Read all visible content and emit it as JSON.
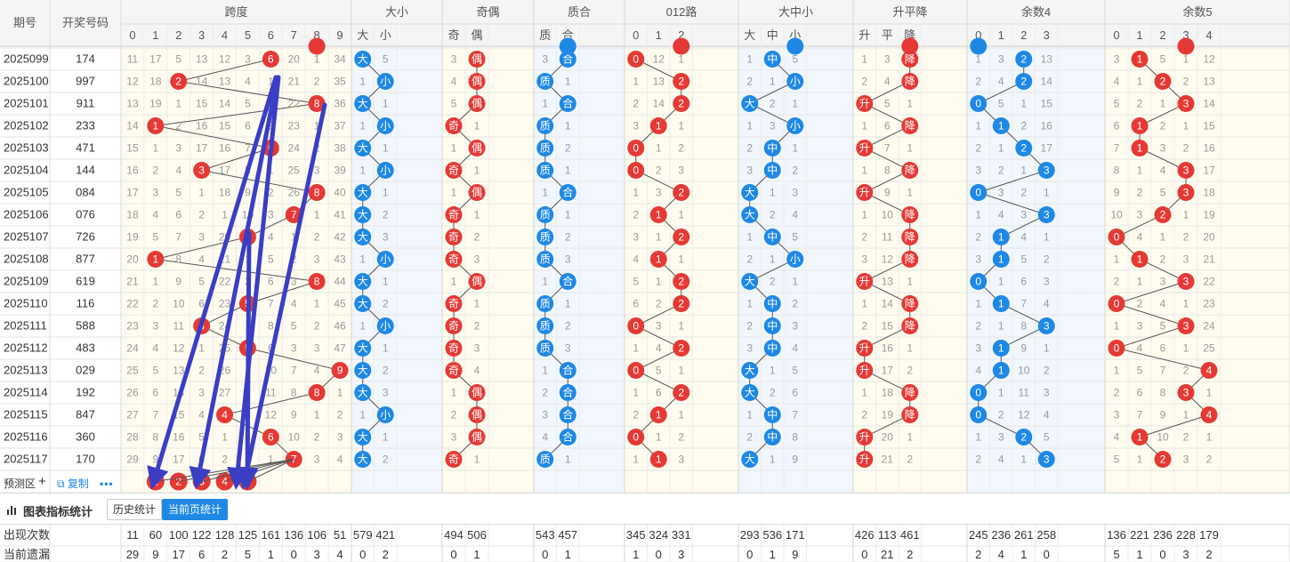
{
  "colors": {
    "red": "#e53935",
    "blue": "#1e88e5",
    "arrow": "#3a3ec4",
    "headerBg": "#f5f5f5",
    "zoneYellow": "#fffcef",
    "zoneBlue": "#f1f7fd"
  },
  "headers": {
    "qihao": "期号",
    "kaijiang": "开奖号码",
    "groups": [
      {
        "name": "跨度",
        "sub": [
          "0",
          "1",
          "2",
          "3",
          "4",
          "5",
          "6",
          "7",
          "8",
          "9"
        ]
      },
      {
        "name": "大小",
        "sub": [
          "大",
          "小"
        ]
      },
      {
        "name": "奇偶",
        "sub": [
          "奇",
          "偶"
        ]
      },
      {
        "name": "质合",
        "sub": [
          "质",
          "合"
        ]
      },
      {
        "name": "012路",
        "sub": [
          "0",
          "1",
          "2"
        ]
      },
      {
        "name": "大中小",
        "sub": [
          "大",
          "中",
          "小"
        ]
      },
      {
        "name": "升平降",
        "sub": [
          "升",
          "平",
          "降"
        ]
      },
      {
        "name": "余数4",
        "sub": [
          "0",
          "1",
          "2",
          "3"
        ]
      },
      {
        "name": "余数5",
        "sub": [
          "0",
          "1",
          "2",
          "3",
          "4"
        ]
      }
    ]
  },
  "rows": [
    {
      "period": "2025099",
      "number": "174",
      "groups": [
        [
          11,
          17,
          5,
          13,
          12,
          3,
          "●",
          20,
          1,
          34
        ],
        [
          "●",
          5
        ],
        [
          3,
          "●"
        ],
        [
          3,
          "●"
        ],
        [
          "●",
          12,
          1
        ],
        [
          1,
          "●",
          5
        ],
        [
          1,
          3,
          "●"
        ],
        [
          1,
          3,
          "●",
          13
        ],
        [
          3,
          "●",
          5,
          1,
          12
        ]
      ]
    },
    {
      "period": "2025100",
      "number": "997",
      "groups": [
        [
          12,
          18,
          "●",
          14,
          13,
          4,
          1,
          21,
          2,
          35
        ],
        [
          1,
          "●"
        ],
        [
          4,
          "●"
        ],
        [
          "●",
          1
        ],
        [
          1,
          13,
          "●"
        ],
        [
          2,
          1,
          "●"
        ],
        [
          2,
          4,
          "●"
        ],
        [
          2,
          4,
          "●",
          14
        ],
        [
          4,
          1,
          "●",
          2,
          13
        ]
      ]
    },
    {
      "period": "2025101",
      "number": "911",
      "groups": [
        [
          13,
          19,
          1,
          15,
          14,
          5,
          2,
          22,
          "●",
          36
        ],
        [
          "●",
          1
        ],
        [
          5,
          "●"
        ],
        [
          1,
          "●"
        ],
        [
          2,
          14,
          "●"
        ],
        [
          "●",
          2,
          1
        ],
        [
          "●",
          5,
          1
        ],
        [
          "●",
          5,
          1,
          15
        ],
        [
          5,
          2,
          1,
          "●",
          14
        ]
      ]
    },
    {
      "period": "2025102",
      "number": "233",
      "groups": [
        [
          14,
          "●",
          2,
          16,
          15,
          6,
          3,
          23,
          1,
          37
        ],
        [
          1,
          "●"
        ],
        [
          "●",
          1
        ],
        [
          "●",
          1
        ],
        [
          3,
          "●",
          1
        ],
        [
          1,
          3,
          "●"
        ],
        [
          1,
          6,
          "●"
        ],
        [
          1,
          "●",
          2,
          16
        ],
        [
          6,
          "●",
          2,
          1,
          15
        ]
      ]
    },
    {
      "period": "2025103",
      "number": "471",
      "groups": [
        [
          15,
          1,
          3,
          17,
          16,
          7,
          "●",
          24,
          2,
          38
        ],
        [
          "●",
          1
        ],
        [
          1,
          "●"
        ],
        [
          "●",
          2
        ],
        [
          "●",
          1,
          2
        ],
        [
          2,
          "●",
          1
        ],
        [
          "●",
          7,
          1
        ],
        [
          2,
          1,
          "●",
          17
        ],
        [
          7,
          "●",
          3,
          2,
          16
        ]
      ]
    },
    {
      "period": "2025104",
      "number": "144",
      "groups": [
        [
          16,
          2,
          4,
          "●",
          17,
          8,
          1,
          25,
          3,
          39
        ],
        [
          1,
          "●"
        ],
        [
          "●",
          1
        ],
        [
          "●",
          1
        ],
        [
          "●",
          2,
          3
        ],
        [
          3,
          "●",
          2
        ],
        [
          1,
          8,
          "●"
        ],
        [
          3,
          2,
          1,
          "●"
        ],
        [
          8,
          1,
          4,
          "●",
          17
        ]
      ]
    },
    {
      "period": "2025105",
      "number": "084",
      "groups": [
        [
          17,
          3,
          5,
          1,
          18,
          9,
          2,
          26,
          "●",
          40
        ],
        [
          "●",
          1
        ],
        [
          1,
          "●"
        ],
        [
          1,
          "●"
        ],
        [
          1,
          3,
          "●"
        ],
        [
          "●",
          1,
          3
        ],
        [
          "●",
          9,
          1
        ],
        [
          "●",
          3,
          2,
          1
        ],
        [
          9,
          2,
          5,
          "●",
          18
        ]
      ]
    },
    {
      "period": "2025106",
      "number": "076",
      "groups": [
        [
          18,
          4,
          6,
          2,
          1,
          10,
          3,
          "●",
          1,
          41
        ],
        [
          "●",
          2
        ],
        [
          "●",
          1
        ],
        [
          "●",
          1
        ],
        [
          2,
          "●",
          1
        ],
        [
          "●",
          2,
          4
        ],
        [
          1,
          10,
          "●"
        ],
        [
          1,
          4,
          3,
          "●"
        ],
        [
          10,
          3,
          "●",
          1,
          19
        ]
      ]
    },
    {
      "period": "2025107",
      "number": "726",
      "groups": [
        [
          19,
          5,
          7,
          3,
          20,
          "●",
          4,
          1,
          2,
          42
        ],
        [
          "●",
          3
        ],
        [
          "●",
          2
        ],
        [
          "●",
          2
        ],
        [
          3,
          1,
          "●"
        ],
        [
          1,
          "●",
          5
        ],
        [
          2,
          11,
          "●"
        ],
        [
          2,
          "●",
          4,
          1
        ],
        [
          "●",
          4,
          1,
          2,
          20
        ]
      ]
    },
    {
      "period": "2025108",
      "number": "877",
      "groups": [
        [
          20,
          "●",
          8,
          4,
          21,
          1,
          5,
          2,
          3,
          43
        ],
        [
          1,
          "●"
        ],
        [
          "●",
          3
        ],
        [
          "●",
          3
        ],
        [
          4,
          "●",
          1
        ],
        [
          2,
          1,
          "●"
        ],
        [
          3,
          12,
          "●"
        ],
        [
          3,
          "●",
          5,
          2
        ],
        [
          1,
          "●",
          2,
          3,
          21
        ]
      ]
    },
    {
      "period": "2025109",
      "number": "619",
      "groups": [
        [
          21,
          1,
          9,
          5,
          22,
          2,
          6,
          3,
          "●",
          44
        ],
        [
          "●",
          1
        ],
        [
          1,
          "●"
        ],
        [
          1,
          "●"
        ],
        [
          5,
          1,
          "●"
        ],
        [
          "●",
          2,
          1
        ],
        [
          "●",
          13,
          1
        ],
        [
          "●",
          1,
          6,
          3
        ],
        [
          2,
          1,
          3,
          "●",
          22
        ]
      ]
    },
    {
      "period": "2025110",
      "number": "116",
      "groups": [
        [
          22,
          2,
          10,
          6,
          23,
          "●",
          7,
          4,
          1,
          45
        ],
        [
          "●",
          2
        ],
        [
          "●",
          1
        ],
        [
          "●",
          1
        ],
        [
          6,
          2,
          "●"
        ],
        [
          1,
          "●",
          2
        ],
        [
          1,
          14,
          "●"
        ],
        [
          1,
          "●",
          7,
          4
        ],
        [
          "●",
          2,
          4,
          1,
          23
        ]
      ]
    },
    {
      "period": "2025111",
      "number": "588",
      "groups": [
        [
          23,
          3,
          11,
          "●",
          24,
          1,
          8,
          5,
          2,
          46
        ],
        [
          1,
          "●"
        ],
        [
          "●",
          2
        ],
        [
          "●",
          2
        ],
        [
          "●",
          3,
          1
        ],
        [
          2,
          "●",
          3
        ],
        [
          2,
          15,
          "●"
        ],
        [
          2,
          1,
          8,
          "●"
        ],
        [
          1,
          3,
          5,
          "●",
          24
        ]
      ]
    },
    {
      "period": "2025112",
      "number": "483",
      "groups": [
        [
          24,
          4,
          12,
          1,
          25,
          "●",
          6,
          3,
          3,
          47
        ],
        [
          "●",
          1
        ],
        [
          "●",
          3
        ],
        [
          "●",
          3
        ],
        [
          1,
          4,
          "●"
        ],
        [
          3,
          "●",
          4
        ],
        [
          "●",
          16,
          1
        ],
        [
          3,
          "●",
          9,
          1
        ],
        [
          "●",
          4,
          6,
          1,
          25
        ]
      ]
    },
    {
      "period": "2025113",
      "number": "029",
      "groups": [
        [
          25,
          5,
          13,
          2,
          26,
          1,
          10,
          7,
          4,
          "●"
        ],
        [
          "●",
          2
        ],
        [
          "●",
          4
        ],
        [
          1,
          "●"
        ],
        [
          "●",
          5,
          1
        ],
        [
          "●",
          1,
          5
        ],
        [
          "●",
          17,
          2
        ],
        [
          4,
          "●",
          10,
          2
        ],
        [
          1,
          5,
          7,
          2,
          "●"
        ]
      ]
    },
    {
      "period": "2025114",
      "number": "192",
      "groups": [
        [
          26,
          6,
          14,
          3,
          27,
          2,
          11,
          8,
          "●",
          1
        ],
        [
          "●",
          3
        ],
        [
          1,
          "●"
        ],
        [
          2,
          "●"
        ],
        [
          1,
          6,
          "●"
        ],
        [
          "●",
          2,
          6
        ],
        [
          1,
          18,
          "●"
        ],
        [
          "●",
          1,
          11,
          3
        ],
        [
          2,
          6,
          8,
          "●",
          1
        ]
      ]
    },
    {
      "period": "2025115",
      "number": "847",
      "groups": [
        [
          27,
          7,
          15,
          4,
          "●",
          3,
          12,
          9,
          1,
          2
        ],
        [
          1,
          "●"
        ],
        [
          2,
          "●"
        ],
        [
          3,
          "●"
        ],
        [
          2,
          "●",
          1
        ],
        [
          1,
          "●",
          7
        ],
        [
          2,
          19,
          "●"
        ],
        [
          "●",
          2,
          12,
          4
        ],
        [
          3,
          7,
          9,
          1,
          "●"
        ]
      ]
    },
    {
      "period": "2025116",
      "number": "360",
      "groups": [
        [
          28,
          8,
          16,
          5,
          1,
          4,
          "●",
          10,
          2,
          3
        ],
        [
          "●",
          1
        ],
        [
          3,
          "●"
        ],
        [
          4,
          "●"
        ],
        [
          "●",
          1,
          2
        ],
        [
          2,
          "●",
          8
        ],
        [
          "●",
          20,
          1
        ],
        [
          1,
          3,
          "●",
          5
        ],
        [
          4,
          "●",
          10,
          2,
          1
        ]
      ]
    },
    {
      "period": "2025117",
      "number": "170",
      "groups": [
        [
          29,
          9,
          17,
          6,
          2,
          5,
          1,
          "●",
          3,
          4
        ],
        [
          "●",
          2
        ],
        [
          "●",
          1
        ],
        [
          "●",
          1
        ],
        [
          1,
          "●",
          3
        ],
        [
          "●",
          1,
          9
        ],
        [
          "●",
          21,
          2
        ],
        [
          2,
          4,
          1,
          "●"
        ],
        [
          5,
          1,
          "●",
          3,
          2
        ]
      ]
    }
  ],
  "prediction": {
    "label": "预测区",
    "copy": "复制",
    "plus": "+",
    "more": "•••",
    "picks": [
      "1",
      "2",
      "3",
      "4",
      "5"
    ]
  },
  "toolbar": {
    "title": "图表指标统计",
    "history": "历史统计",
    "current": "当前页统计"
  },
  "stats": [
    {
      "label": "出现次数",
      "groups": [
        [
          11,
          60,
          100,
          122,
          128,
          125,
          161,
          136,
          106,
          51
        ],
        [
          579,
          421
        ],
        [
          494,
          506
        ],
        [
          543,
          457
        ],
        [
          345,
          324,
          331
        ],
        [
          293,
          536,
          171
        ],
        [
          426,
          113,
          461
        ],
        [
          245,
          236,
          261,
          258
        ],
        [
          136,
          221,
          236,
          228,
          179
        ]
      ]
    },
    {
      "label": "当前遗漏",
      "groups": [
        [
          29,
          9,
          17,
          6,
          2,
          5,
          1,
          0,
          3,
          4
        ],
        [
          0,
          2
        ],
        [
          0,
          1
        ],
        [
          0,
          1
        ],
        [
          1,
          0,
          3
        ],
        [
          0,
          1,
          9
        ],
        [
          0,
          21,
          2
        ],
        [
          2,
          4,
          1,
          0
        ],
        [
          5,
          1,
          0,
          3,
          2
        ]
      ]
    }
  ]
}
